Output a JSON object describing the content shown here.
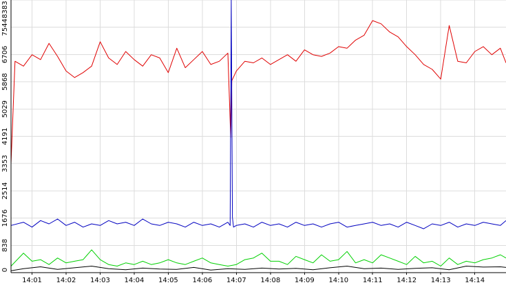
{
  "chart_data": {
    "type": "line",
    "title": "",
    "xlabel": "",
    "ylabel": "",
    "grid": true,
    "legend": "none",
    "xlim": [
      "14:00:23",
      "14:14:55"
    ],
    "ylim": [
      0,
      8383
    ],
    "x_ticks": [
      "14:01",
      "14:02",
      "14:03",
      "14:04",
      "14:05",
      "14:06",
      "14:07",
      "14:08",
      "14:09",
      "14:10",
      "14:11",
      "14:12",
      "14:13",
      "14:14"
    ],
    "y_ticks": [
      "0",
      "838",
      "1676",
      "2514",
      "3353",
      "4191",
      "5029",
      "5868",
      "6706",
      "7544",
      "8383"
    ],
    "series": [
      {
        "color": "#e00000",
        "x": [
          "14:00:23",
          "14:00:30",
          "14:00:45",
          "14:01:00",
          "14:01:15",
          "14:01:30",
          "14:01:45",
          "14:02:00",
          "14:02:15",
          "14:02:30",
          "14:02:45",
          "14:03:00",
          "14:03:15",
          "14:03:30",
          "14:03:45",
          "14:04:00",
          "14:04:15",
          "14:04:30",
          "14:04:45",
          "14:05:00",
          "14:05:15",
          "14:05:30",
          "14:05:45",
          "14:06:00",
          "14:06:15",
          "14:06:30",
          "14:06:45",
          "14:06:50",
          "14:06:52",
          "14:07:00",
          "14:07:15",
          "14:07:30",
          "14:07:45",
          "14:08:00",
          "14:08:15",
          "14:08:30",
          "14:08:45",
          "14:09:00",
          "14:09:15",
          "14:09:30",
          "14:09:45",
          "14:10:00",
          "14:10:15",
          "14:10:30",
          "14:10:45",
          "14:11:00",
          "14:11:15",
          "14:11:30",
          "14:11:45",
          "14:12:00",
          "14:12:15",
          "14:12:30",
          "14:12:45",
          "14:13:00",
          "14:13:15",
          "14:13:30",
          "14:13:45",
          "14:14:00",
          "14:14:15",
          "14:14:30",
          "14:14:45",
          "14:14:55"
        ],
        "values": [
          3353,
          6500,
          6350,
          6700,
          6550,
          7050,
          6650,
          6200,
          6000,
          6150,
          6350,
          7100,
          6600,
          6400,
          6800,
          6550,
          6350,
          6700,
          6600,
          6150,
          6900,
          6300,
          6550,
          6800,
          6400,
          6500,
          6750,
          4150,
          5900,
          6200,
          6500,
          6450,
          6600,
          6400,
          6550,
          6700,
          6500,
          6850,
          6700,
          6650,
          6750,
          6950,
          6900,
          7150,
          7300,
          7750,
          7650,
          7400,
          7250,
          6950,
          6700,
          6400,
          6250,
          5950,
          7600,
          6500,
          6450,
          6800,
          6950,
          6700,
          6900,
          6450
        ]
      },
      {
        "color": "#0000c0",
        "x": [
          "14:00:23",
          "14:00:45",
          "14:01:00",
          "14:01:15",
          "14:01:30",
          "14:01:45",
          "14:02:00",
          "14:02:15",
          "14:02:30",
          "14:02:45",
          "14:03:00",
          "14:03:15",
          "14:03:30",
          "14:03:45",
          "14:04:00",
          "14:04:15",
          "14:04:30",
          "14:04:45",
          "14:05:00",
          "14:05:15",
          "14:05:30",
          "14:05:45",
          "14:06:00",
          "14:06:15",
          "14:06:30",
          "14:06:45",
          "14:06:49",
          "14:06:51",
          "14:06:53",
          "14:06:55",
          "14:07:00",
          "14:07:15",
          "14:07:30",
          "14:07:45",
          "14:08:00",
          "14:08:15",
          "14:08:30",
          "14:08:45",
          "14:09:00",
          "14:09:15",
          "14:09:30",
          "14:09:45",
          "14:10:00",
          "14:10:15",
          "14:10:30",
          "14:10:45",
          "14:11:00",
          "14:11:15",
          "14:11:30",
          "14:11:45",
          "14:12:00",
          "14:12:15",
          "14:12:30",
          "14:12:45",
          "14:13:00",
          "14:13:15",
          "14:13:30",
          "14:13:45",
          "14:14:00",
          "14:14:15",
          "14:14:30",
          "14:14:45",
          "14:14:55"
        ],
        "values": [
          1450,
          1550,
          1400,
          1600,
          1500,
          1650,
          1450,
          1550,
          1400,
          1500,
          1450,
          1600,
          1500,
          1550,
          1450,
          1650,
          1500,
          1450,
          1550,
          1500,
          1400,
          1550,
          1450,
          1500,
          1400,
          1550,
          1450,
          8383,
          1700,
          1400,
          1450,
          1500,
          1400,
          1550,
          1450,
          1500,
          1400,
          1550,
          1450,
          1500,
          1400,
          1500,
          1550,
          1400,
          1450,
          1500,
          1550,
          1450,
          1500,
          1400,
          1550,
          1450,
          1350,
          1500,
          1450,
          1550,
          1400,
          1500,
          1450,
          1550,
          1500,
          1450,
          1600
        ]
      },
      {
        "color": "#00d000",
        "x": [
          "14:00:23",
          "14:00:45",
          "14:01:00",
          "14:01:15",
          "14:01:30",
          "14:01:45",
          "14:02:00",
          "14:02:15",
          "14:02:30",
          "14:02:45",
          "14:03:00",
          "14:03:15",
          "14:03:30",
          "14:03:45",
          "14:04:00",
          "14:04:15",
          "14:04:30",
          "14:04:45",
          "14:05:00",
          "14:05:15",
          "14:05:30",
          "14:05:45",
          "14:06:00",
          "14:06:15",
          "14:06:30",
          "14:06:45",
          "14:07:00",
          "14:07:15",
          "14:07:30",
          "14:07:45",
          "14:08:00",
          "14:08:15",
          "14:08:30",
          "14:08:45",
          "14:09:00",
          "14:09:15",
          "14:09:30",
          "14:09:45",
          "14:10:00",
          "14:10:15",
          "14:10:30",
          "14:10:45",
          "14:11:00",
          "14:11:15",
          "14:11:30",
          "14:11:45",
          "14:12:00",
          "14:12:15",
          "14:12:30",
          "14:12:45",
          "14:13:00",
          "14:13:15",
          "14:13:30",
          "14:13:45",
          "14:14:00",
          "14:14:15",
          "14:14:30",
          "14:14:45",
          "14:14:55"
        ],
        "values": [
          200,
          600,
          350,
          400,
          250,
          450,
          300,
          350,
          400,
          700,
          400,
          250,
          200,
          300,
          250,
          350,
          250,
          300,
          400,
          300,
          250,
          350,
          450,
          300,
          250,
          200,
          250,
          400,
          450,
          600,
          350,
          350,
          250,
          500,
          400,
          300,
          550,
          350,
          400,
          650,
          300,
          400,
          300,
          550,
          450,
          350,
          250,
          500,
          300,
          350,
          200,
          450,
          250,
          350,
          300,
          400,
          450,
          550,
          450
        ]
      },
      {
        "color": "#000000",
        "x": [
          "14:00:23",
          "14:00:45",
          "14:01:15",
          "14:01:45",
          "14:02:15",
          "14:02:45",
          "14:03:15",
          "14:03:45",
          "14:04:15",
          "14:04:45",
          "14:05:15",
          "14:05:45",
          "14:06:15",
          "14:06:45",
          "14:07:15",
          "14:07:45",
          "14:08:15",
          "14:08:45",
          "14:09:15",
          "14:09:45",
          "14:10:15",
          "14:10:45",
          "14:11:15",
          "14:11:45",
          "14:12:15",
          "14:12:45",
          "14:13:15",
          "14:13:45",
          "14:14:15",
          "14:14:45",
          "14:14:55"
        ],
        "values": [
          60,
          120,
          180,
          100,
          150,
          200,
          120,
          90,
          140,
          110,
          100,
          160,
          80,
          120,
          100,
          140,
          110,
          130,
          90,
          150,
          200,
          120,
          140,
          100,
          130,
          150,
          90,
          200,
          170,
          180,
          160
        ]
      }
    ]
  }
}
